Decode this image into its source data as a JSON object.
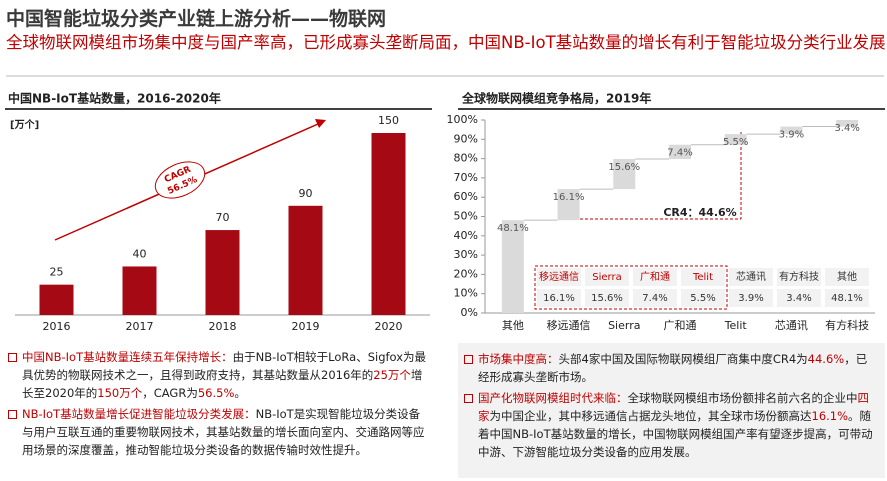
{
  "header": {
    "title": "中国智能垃圾分类产业链上游分析——物联网",
    "subtitle": "全球物联网模组市场集中度与国产率高，已形成寡头垄断局面，中国NB-IoT基站数量的增长有利于智能垃圾分类行业发展"
  },
  "chart_data": [
    {
      "type": "bar",
      "title": "中国NB-IoT基站数量，2016-2020年",
      "unit": "[万个]",
      "categories": [
        "2016",
        "2017",
        "2018",
        "2019",
        "2020"
      ],
      "values": [
        25,
        40,
        70,
        90,
        150
      ],
      "color": "#a50a14",
      "annotation": [
        "CAGR",
        "56.5%"
      ]
    },
    {
      "type": "waterfall",
      "title": "全球物联网模组竞争格局，2019年",
      "categories": [
        "其他",
        "移远通信",
        "Sierra",
        "广和通",
        "Telit",
        "芯通讯",
        "有方科技"
      ],
      "values": [
        48.1,
        16.1,
        15.6,
        7.4,
        5.5,
        3.9,
        3.4
      ],
      "value_labels": [
        "48.1%",
        "16.1%",
        "15.6%",
        "7.4%",
        "5.5%",
        "3.9%",
        "3.4%"
      ],
      "color": "#dadada",
      "ylim": [
        0,
        100
      ],
      "yticks": [
        {
          "value": 0,
          "label": "0%"
        },
        {
          "value": 10,
          "label": "10%"
        },
        {
          "value": 20,
          "label": "20%"
        },
        {
          "value": 30,
          "label": "30%"
        },
        {
          "value": 40,
          "label": "40%"
        },
        {
          "value": 50,
          "label": "50%"
        },
        {
          "value": 60,
          "label": "60%"
        },
        {
          "value": 70,
          "label": "70%"
        },
        {
          "value": 80,
          "label": "80%"
        },
        {
          "value": 90,
          "label": "90%"
        },
        {
          "value": 100,
          "label": "100%"
        }
      ],
      "annotation": "CR4：44.6%",
      "table": {
        "rows": [
          [
            "移远通信",
            "Sierra",
            "广和通",
            "Telit",
            "芯通讯",
            "有方科技",
            "其他"
          ],
          [
            "16.1%",
            "15.6%",
            "7.4%",
            "5.5%",
            "3.9%",
            "3.4%",
            "48.1%"
          ]
        ]
      }
    }
  ],
  "notes": [
    {
      "bullets": [
        [
          {
            "text": "中国NB-IoT基站数量连续五年保持增长：",
            "highlight": true
          },
          {
            "text": "由于NB-IoT相较于LoRa、Sigfox为最具优势的物联网技术之一，且得到政府支持，其基站数量从2016年的"
          },
          {
            "text": "25万个",
            "highlight": true
          },
          {
            "text": "增长至2020年的"
          },
          {
            "text": "150万个",
            "highlight": true
          },
          {
            "text": "，CAGR为"
          },
          {
            "text": "56.5%",
            "highlight": true
          },
          {
            "text": "。"
          }
        ],
        [
          {
            "text": "NB-IoT基站数量增长促进智能垃圾分类发展：",
            "highlight": true
          },
          {
            "text": "NB-IoT是实现智能垃圾分类设备与用户互联互通的重要物联网技术，其基站数量的增长面向室内、交通路网等应用场景的深度覆盖，推动智能垃圾分类设备的数据传输时效性提升。"
          }
        ]
      ]
    },
    {
      "bullets": [
        [
          {
            "text": "市场集中度高：",
            "highlight": true
          },
          {
            "text": "头部4家中国及国际物联网模组厂商集中度CR4为"
          },
          {
            "text": "44.6%",
            "highlight": true
          },
          {
            "text": "，已经形成寡头垄断市场。"
          }
        ],
        [
          {
            "text": "国产化物联网模组时代来临：",
            "highlight": true
          },
          {
            "text": "全球物联网模组市场份额排名前六名的企业中"
          },
          {
            "text": "四家",
            "highlight": true
          },
          {
            "text": "为中国企业，其中移远通信占据龙头地位，其全球市场份额高达"
          },
          {
            "text": "16.1%",
            "highlight": true
          },
          {
            "text": "。随着中国NB-IoT基站数量的增长，中国物联网模组国产率有望逐步提高，可带动中游、下游智能垃圾分类设备的应用发展。"
          }
        ]
      ]
    }
  ]
}
